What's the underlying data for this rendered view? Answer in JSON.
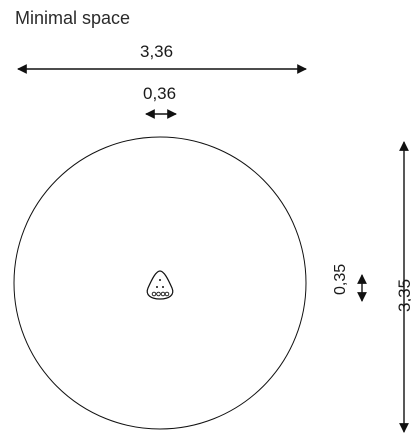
{
  "title": "Minimal space",
  "dimensions": {
    "total_width": "3,36",
    "element_width": "0,36",
    "element_depth": "0,35",
    "total_depth": "3,35"
  }
}
